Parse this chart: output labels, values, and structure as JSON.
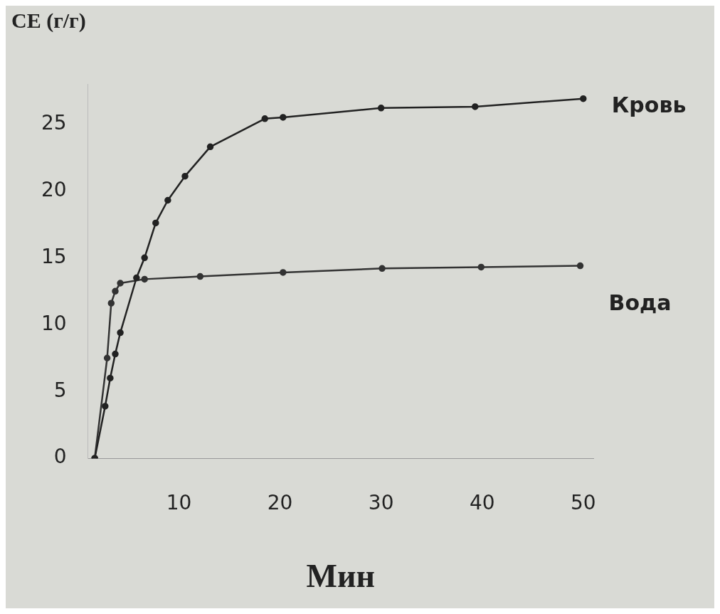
{
  "chart_data": {
    "type": "line",
    "ylabel": "CE (г/г)",
    "xlabel": "Мин",
    "xlim": [
      1,
      51
    ],
    "xticks": [
      10,
      20,
      30,
      40,
      50
    ],
    "ylim": [
      0,
      28
    ],
    "yticks": [
      0,
      5,
      10,
      15,
      20,
      25
    ],
    "grid": false,
    "legend": false,
    "marker": "circle",
    "line_style": "solid",
    "series": [
      {
        "name": "Кровь",
        "color": "#222222",
        "x": [
          1.67,
          2.7,
          3.2,
          3.7,
          4.2,
          5.8,
          6.6,
          7.7,
          8.9,
          10.6,
          13.1,
          18.5,
          20.3,
          30,
          39.3,
          50
        ],
        "values": [
          0,
          3.9,
          6.0,
          7.8,
          9.4,
          13.5,
          15.0,
          17.6,
          19.3,
          21.1,
          23.3,
          25.4,
          25.5,
          26.2,
          26.3,
          26.9
        ]
      },
      {
        "name": "Вода",
        "color": "#333333",
        "x": [
          1.67,
          2.9,
          3.3,
          3.7,
          4.2,
          6.6,
          12.1,
          20.3,
          30.1,
          39.9,
          49.7
        ],
        "values": [
          0,
          7.5,
          11.6,
          12.5,
          13.1,
          13.4,
          13.6,
          13.9,
          14.2,
          14.3,
          14.4
        ]
      }
    ]
  }
}
